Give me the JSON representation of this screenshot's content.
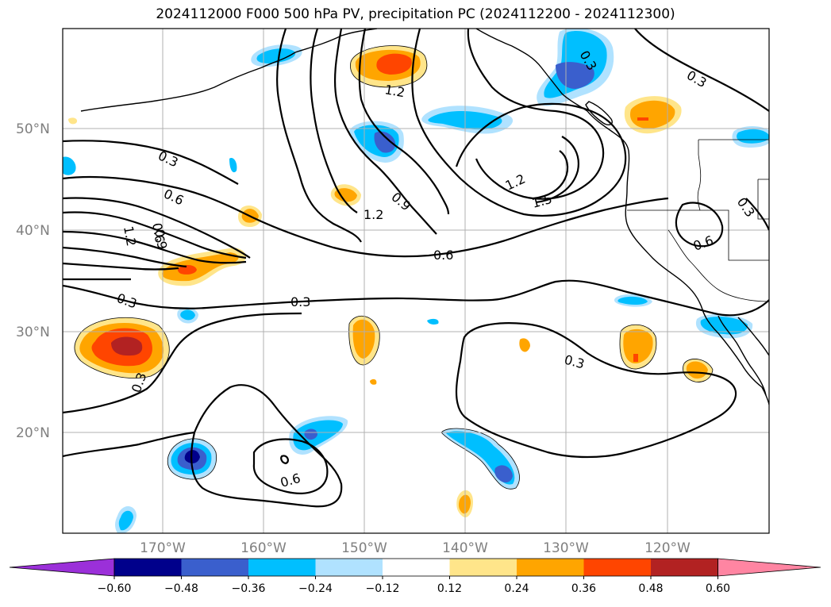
{
  "title": "2024112000 F000 500 hPa PV, precipitation PC (2024112200 - 2024112300)",
  "lat_labels": [
    "50°N",
    "40°N",
    "30°N",
    "20°N"
  ],
  "lon_labels": [
    "170°W",
    "160°W",
    "150°W",
    "140°W",
    "130°W",
    "120°W"
  ],
  "contour_labels": [
    "1.2",
    "0.3",
    "0.3",
    "0.3",
    "0.6",
    "1.2",
    "0.6",
    "0.9",
    "1.2",
    "0.9",
    "0.6",
    "1.2",
    "1.5",
    "0.3",
    "0.6",
    "0.3",
    "0.3",
    "0.3",
    "0.3",
    "0.6"
  ],
  "colorbar": {
    "colors": [
      "#9b30d9",
      "#00008b",
      "#3a5fcd",
      "#00bfff",
      "#b0e2ff",
      "#ffffff",
      "#ffe58a",
      "#ffa500",
      "#ff4500",
      "#b22222",
      "#ff85a2"
    ],
    "ticks": [
      "−0.60",
      "−0.48",
      "−0.36",
      "−0.24",
      "−0.12",
      "0.12",
      "0.24",
      "0.36",
      "0.48",
      "0.60"
    ]
  }
}
